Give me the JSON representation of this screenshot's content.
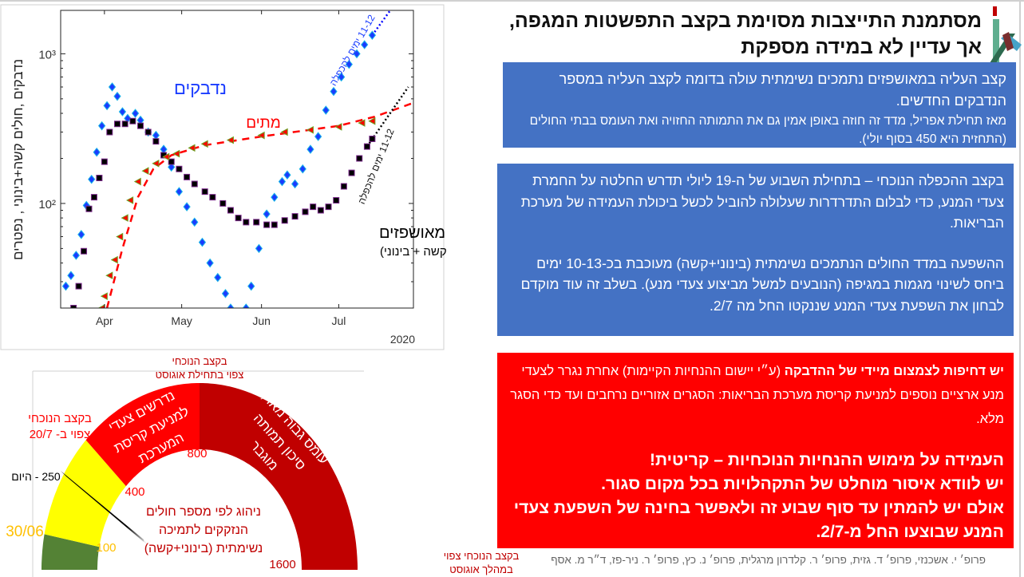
{
  "title": "מסתמנת התייצבות מסוימת בקצב התפשטות המגפה, אך עדיין לא במידה מספקת",
  "logo": {
    "colors": [
      "#c00000",
      "#5fae8f",
      "#2d6a4f",
      "#46a3c8",
      "#7a2e2e"
    ]
  },
  "box1": {
    "line1": "קצב העליה במאושפזים נתמכים נשימתית עולה בדומה לקצב העליה במספר הנדבקים החדשים.",
    "line2": "מאז תחילת אפריל, מדד זה חוזה באופן אמין גם את התמותה החזויה ואת העומס בבתי החולים (התחזית היא 450 בסוף יולי).",
    "color": "#4472c4"
  },
  "box2": {
    "para1": "בקצב ההכפלה הנוכחי – בתחילת השבוע של ה-19 ליולי תדרש החלטה על החמרת צעדי המנע, כדי לבלום התדרדרות שעלולה להוביל לכשל ביכולת העמידה של מערכת הבריאות.",
    "para2": "ההשפעה במדד החולים הנתמכים נשימתית (בינוני+קשה) מעוכבת בכ-10-13 ימים ביחס לשינוי מגמות במגיפה (הנובעים למשל מביצוע צעדי מנע). בשלב זה עוד מוקדם לבחון את השפעת צעדי המנע שננקטו החל מה 2/7."
  },
  "box3": {
    "line1_bold": "יש דחיפות לצמצום מיידי של ההדבקה",
    "line1_rest": " (ע״י יישום ההנחיות הקיימות) אחרת נגרר לצעדי מנע ארציים נוספים למניעת קריסת מערכת הבריאות: הסגרים אזוריים נרחבים  ועד כדי הסגר מלא.",
    "big1": "העמידה על מימוש ההנחיות הנוכחיות – קריטית!",
    "big2": "יש לוודא איסור מוחלט של התקהלויות בכל מקום סגור.",
    "big3": "אולם יש להמתין עד סוף שבוע זה ולאפשר בחינה של השפעת צעדי המנע שבוצעו החל מ-2/7.",
    "color": "#ff0000"
  },
  "authors": "פרופ׳ י. אשכנזי, פרופ׳ ד. גזית, פרופ׳ ר. קלדרון מרגלית, פרופ׳ נ. כץ, פרופ׳ ר. ניר-פז, ד״ר מ. אסף",
  "chart_data": [
    {
      "type": "scatter",
      "ylabel": "נדבקים ,חולים קשה+בינוני , נפטרים",
      "yscale": "log",
      "ylim": [
        20,
        1950
      ],
      "yticks": [
        {
          "value": 100,
          "label": "10²"
        },
        {
          "value": 1000,
          "label": "10³"
        }
      ],
      "xlim": [
        "2020-03-15",
        "2020-07-30"
      ],
      "xticks": [
        {
          "date": "2020-04-01",
          "label": "Apr"
        },
        {
          "date": "2020-05-01",
          "label": "May"
        },
        {
          "date": "2020-06-01",
          "label": "Jun"
        },
        {
          "date": "2020-07-01",
          "label": "Jul"
        }
      ],
      "year_label": "2020",
      "grid": false,
      "series": [
        {
          "name": "נדבקים",
          "marker": "diamond",
          "color": "#1a3cff",
          "edge": "#19b5e8",
          "points": [
            [
              "2020-03-17",
              28
            ],
            [
              "2020-03-19",
              33
            ],
            [
              "2020-03-21",
              45
            ],
            [
              "2020-03-23",
              62
            ],
            [
              "2020-03-25",
              97
            ],
            [
              "2020-03-27",
              145
            ],
            [
              "2020-03-29",
              220
            ],
            [
              "2020-03-31",
              330
            ],
            [
              "2020-04-02",
              450
            ],
            [
              "2020-04-04",
              600
            ],
            [
              "2020-04-06",
              520
            ],
            [
              "2020-04-08",
              410
            ],
            [
              "2020-04-10",
              370
            ],
            [
              "2020-04-13",
              400
            ],
            [
              "2020-04-15",
              360
            ],
            [
              "2020-04-18",
              300
            ],
            [
              "2020-04-21",
              285
            ],
            [
              "2020-04-24",
              230
            ],
            [
              "2020-04-27",
              175
            ],
            [
              "2020-04-30",
              120
            ],
            [
              "2020-05-03",
              95
            ],
            [
              "2020-05-06",
              75
            ],
            [
              "2020-05-09",
              55
            ],
            [
              "2020-05-12",
              40
            ],
            [
              "2020-05-15",
              32
            ],
            [
              "2020-05-18",
              25
            ],
            [
              "2020-05-20",
              20
            ],
            [
              "2020-05-26",
              20
            ],
            [
              "2020-05-28",
              28
            ],
            [
              "2020-05-31",
              50
            ],
            [
              "2020-06-03",
              85
            ],
            [
              "2020-06-06",
              110
            ],
            [
              "2020-06-09",
              140
            ],
            [
              "2020-06-11",
              155
            ],
            [
              "2020-06-14",
              135
            ],
            [
              "2020-06-17",
              170
            ],
            [
              "2020-06-20",
              230
            ],
            [
              "2020-06-23",
              280
            ],
            [
              "2020-06-26",
              420
            ],
            [
              "2020-06-29",
              560
            ],
            [
              "2020-07-02",
              700
            ],
            [
              "2020-07-05",
              850
            ],
            [
              "2020-07-08",
              1000
            ],
            [
              "2020-07-11",
              1150
            ],
            [
              "2020-07-14",
              1330
            ]
          ]
        },
        {
          "name": "מאושפזים",
          "subname": "(קשה + בינוני)",
          "marker": "square",
          "color": "#000000",
          "edge": "#7b2a8c",
          "points": [
            [
              "2020-03-20",
              20
            ],
            [
              "2020-03-22",
              28
            ],
            [
              "2020-03-24",
              48
            ],
            [
              "2020-03-26",
              92
            ],
            [
              "2020-03-28",
              110
            ],
            [
              "2020-03-30",
              148
            ],
            [
              "2020-04-01",
              190
            ],
            [
              "2020-04-03",
              300
            ],
            [
              "2020-04-06",
              340
            ],
            [
              "2020-04-09",
              340
            ],
            [
              "2020-04-12",
              355
            ],
            [
              "2020-04-15",
              330
            ],
            [
              "2020-04-18",
              300
            ],
            [
              "2020-04-21",
              260
            ],
            [
              "2020-04-24",
              210
            ],
            [
              "2020-04-27",
              190
            ],
            [
              "2020-04-30",
              170
            ],
            [
              "2020-05-03",
              150
            ],
            [
              "2020-05-06",
              135
            ],
            [
              "2020-05-10",
              120
            ],
            [
              "2020-05-13",
              110
            ],
            [
              "2020-05-17",
              100
            ],
            [
              "2020-05-20",
              90
            ],
            [
              "2020-05-23",
              80
            ],
            [
              "2020-05-26",
              75
            ],
            [
              "2020-05-30",
              75
            ],
            [
              "2020-06-03",
              72
            ],
            [
              "2020-06-06",
              72
            ],
            [
              "2020-06-10",
              77
            ],
            [
              "2020-06-14",
              82
            ],
            [
              "2020-06-18",
              88
            ],
            [
              "2020-06-21",
              95
            ],
            [
              "2020-06-24",
              90
            ],
            [
              "2020-06-27",
              95
            ],
            [
              "2020-06-30",
              105
            ],
            [
              "2020-07-03",
              130
            ],
            [
              "2020-07-06",
              160
            ],
            [
              "2020-07-09",
              200
            ],
            [
              "2020-07-12",
              240
            ],
            [
              "2020-07-14",
              270
            ]
          ]
        },
        {
          "name": "מתים",
          "marker": "triangle-left",
          "color": "#ff0000",
          "edge": "#6aa121",
          "points": [
            [
              "2020-03-31",
              20
            ],
            [
              "2020-04-01",
              24
            ],
            [
              "2020-04-03",
              33
            ],
            [
              "2020-04-05",
              42
            ],
            [
              "2020-04-07",
              60
            ],
            [
              "2020-04-09",
              80
            ],
            [
              "2020-04-11",
              105
            ],
            [
              "2020-04-14",
              140
            ],
            [
              "2020-04-17",
              165
            ],
            [
              "2020-04-21",
              185
            ],
            [
              "2020-04-25",
              205
            ],
            [
              "2020-04-29",
              215
            ],
            [
              "2020-05-05",
              235
            ],
            [
              "2020-05-10",
              250
            ],
            [
              "2020-05-20",
              265
            ],
            [
              "2020-06-01",
              285
            ],
            [
              "2020-06-10",
              300
            ],
            [
              "2020-06-20",
              310
            ],
            [
              "2020-07-01",
              325
            ],
            [
              "2020-07-10",
              345
            ],
            [
              "2020-07-14",
              355
            ]
          ]
        }
      ],
      "fits": [
        {
          "style": "dashed",
          "color": "#ff0000",
          "points": [
            [
              "2020-04-02",
              20
            ],
            [
              "2020-04-08",
              50
            ],
            [
              "2020-04-14",
              110
            ],
            [
              "2020-04-20",
              170
            ],
            [
              "2020-04-27",
              210
            ],
            [
              "2020-05-10",
              245
            ],
            [
              "2020-06-01",
              280
            ],
            [
              "2020-07-01",
              330
            ],
            [
              "2020-07-15",
              380
            ],
            [
              "2020-07-30",
              470
            ]
          ]
        },
        {
          "style": "dotted",
          "color": "#0000ff",
          "points": [
            [
              "2020-07-14",
              1330
            ],
            [
              "2020-07-21",
              1950
            ]
          ]
        },
        {
          "style": "dotted",
          "color": "#000000",
          "points": [
            [
              "2020-07-12",
              240
            ],
            [
              "2020-07-28",
              600
            ]
          ]
        }
      ],
      "annotations": {
        "infected_doubling": "11-12 ימים להכפלה",
        "hosp_doubling": "11-12 ימים להכפלה"
      }
    },
    {
      "type": "gauge",
      "segments": [
        {
          "from": 0,
          "to": 100,
          "color": "#548235"
        },
        {
          "from": 100,
          "to": 400,
          "color": "#ffff00"
        },
        {
          "from": 400,
          "to": 800,
          "color": "#ff0000",
          "label": "נדרשים צעדי למניעת קריסת המערכת"
        },
        {
          "from": 800,
          "to": 1600,
          "color": "#c00000",
          "label": "עומס גבוה מאד, סיכון תמותה מוגבר"
        }
      ],
      "tick_labels": [
        "100",
        "400",
        "800",
        "1600"
      ],
      "needle_value": 250,
      "needle_label": "250 - היום",
      "date_label": "30/06",
      "center_text": [
        "ניהוג לפי מספר חולים",
        "הנזקקים לתמיכה",
        "נשימתית (בינוני+קשה)"
      ],
      "markers": {
        "at_400": [
          "בקצב הנוכחי",
          "צפוי ב- 20/7"
        ],
        "at_800": [
          "בקצב הנוכחי",
          "צפוי בתחילת אוגוסט"
        ],
        "at_1600": [
          "בקצב הנוכחי צפוי",
          "במהלך אוגוסט"
        ]
      }
    }
  ]
}
